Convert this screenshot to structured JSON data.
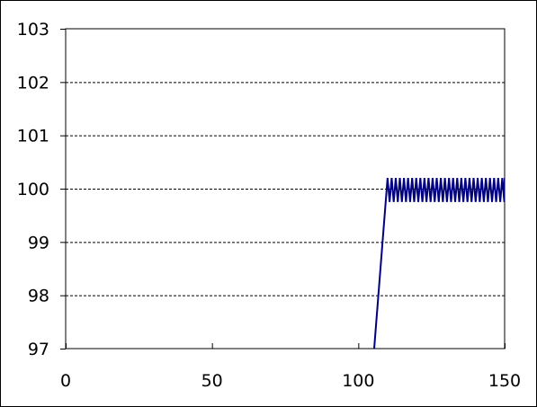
{
  "chart_data": {
    "type": "line",
    "title": "",
    "xlabel": "",
    "ylabel": "",
    "xlim": [
      0,
      150
    ],
    "ylim": [
      97,
      103
    ],
    "x_ticks": [
      0,
      50,
      100,
      150
    ],
    "y_ticks": [
      97,
      98,
      99,
      100,
      101,
      102,
      103
    ],
    "x_tick_labels": [
      "0",
      "50",
      "100",
      "150"
    ],
    "y_tick_labels": [
      "97",
      "98",
      "99",
      "100",
      "101",
      "102",
      "103"
    ],
    "grid": "horizontal dashed",
    "legend": "none",
    "series": [
      {
        "color": "#000080",
        "ramp": {
          "x": [
            104,
            110
          ],
          "y": [
            96,
            100.2
          ]
        },
        "oscillation": {
          "x_start": 110,
          "x_end": 150,
          "period": 1.4,
          "y_high": 100.2,
          "y_low": 99.75
        }
      }
    ]
  }
}
